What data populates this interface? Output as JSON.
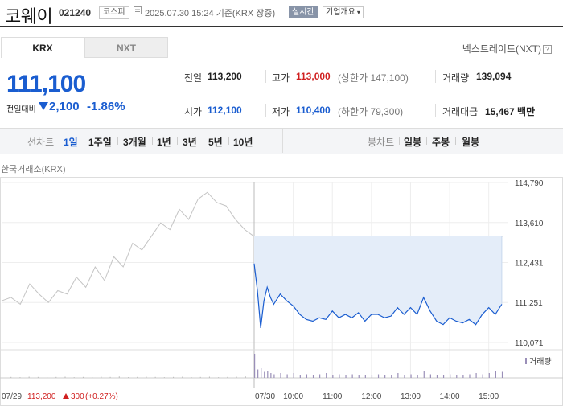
{
  "header": {
    "name": "코웨이",
    "code": "021240",
    "market": "코스피",
    "datetime": "2025.07.30 15:24 기준(KRX 장중)",
    "realtime": "실시간",
    "corp_info": "기업개요"
  },
  "tabs": {
    "krx": "KRX",
    "nxt": "NXT"
  },
  "nextrade_link": "넥스트레이드(NXT)",
  "price": {
    "current": "111,100",
    "prev_label": "전일대비",
    "change": "2,100",
    "percent": "-1.86%"
  },
  "stats": {
    "prev_close_label": "전일",
    "prev_close": "113,200",
    "high_label": "고가",
    "high": "113,000",
    "upper_limit": "(상한가 147,100)",
    "volume_label": "거래량",
    "volume": "139,094",
    "open_label": "시가",
    "open": "112,100",
    "low_label": "저가",
    "low": "110,400",
    "lower_limit": "(하한가 79,300)",
    "amount_label": "거래대금",
    "amount": "15,467",
    "amount_unit": "백만"
  },
  "periods": {
    "line_label": "선차트",
    "items": [
      "1일",
      "1주일",
      "3개월",
      "1년",
      "3년",
      "5년",
      "10년"
    ],
    "candle_label": "봉차트",
    "candle_items": [
      "일봉",
      "주봉",
      "월봉"
    ]
  },
  "exchange_label": "한국거래소(KRX)",
  "colors": {
    "accent": "#1a5dd0",
    "up": "#d02020",
    "area": "#e4edf9",
    "prev_line": "#c4c4c4"
  },
  "chart_data": {
    "type": "line",
    "y_ticks": [
      "114,790",
      "113,610",
      "112,431",
      "111,251",
      "110,071"
    ],
    "ylim": [
      110071,
      114790
    ],
    "x_ticks": [
      "10:00",
      "11:00",
      "12:00",
      "13:00",
      "14:00",
      "15:00"
    ],
    "prev_day_label": "07/29",
    "prev_day_close": "113,200",
    "prev_day_change": "300",
    "prev_day_pct": "(+0.27%)",
    "today_label": "07/30",
    "volume_legend": "거래량",
    "reference_price": 113200,
    "series": [
      {
        "time": [
          "09:00",
          "09:05",
          "09:10",
          "09:15",
          "09:20",
          "09:25",
          "09:30",
          "09:40",
          "09:50",
          "10:00",
          "10:10",
          "10:20",
          "10:30",
          "10:40",
          "10:50",
          "11:00",
          "11:10",
          "11:20",
          "11:30",
          "11:40",
          "11:50",
          "12:00",
          "12:10",
          "12:20",
          "12:30",
          "12:40",
          "12:50",
          "13:00",
          "13:10",
          "13:20",
          "13:30",
          "13:40",
          "13:50",
          "14:00",
          "14:10",
          "14:20",
          "14:30",
          "14:40",
          "14:50",
          "15:00",
          "15:10",
          "15:20"
        ],
        "values": [
          112400,
          111600,
          110500,
          111300,
          111700,
          111400,
          111200,
          111500,
          111300,
          111150,
          110900,
          110750,
          110700,
          110800,
          110750,
          111000,
          110800,
          110900,
          110800,
          110950,
          110700,
          110900,
          110900,
          110800,
          110850,
          111100,
          110900,
          111100,
          110900,
          111400,
          111000,
          110700,
          110600,
          110800,
          110700,
          110650,
          110750,
          110600,
          110900,
          111100,
          110900,
          111200
        ]
      }
    ],
    "prev_day_series": {
      "values": [
        111300,
        111400,
        111200,
        111800,
        111500,
        111250,
        111600,
        111500,
        112000,
        111700,
        112300,
        111900,
        112600,
        112300,
        113000,
        112800,
        113200,
        113600,
        113400,
        114000,
        113700,
        114300,
        114500,
        114200,
        114100,
        113700,
        113400,
        113200
      ]
    },
    "volume": {
      "prev_day": [
        0.05,
        0.04,
        0.03,
        0.05,
        0.04,
        0.03,
        0.04,
        0.05,
        0.03,
        0.04,
        0.03,
        0.05,
        0.04,
        0.06,
        0.03,
        0.04,
        0.05,
        0.04,
        0.03,
        0.04,
        0.05,
        0.03,
        0.04,
        0.05,
        0.03,
        0.04,
        0.05,
        0.06
      ],
      "today": [
        1.0,
        0.35,
        0.4,
        0.25,
        0.3,
        0.2,
        0.15,
        0.2,
        0.15,
        0.2,
        0.1,
        0.15,
        0.1,
        0.15,
        0.2,
        0.1,
        0.15,
        0.1,
        0.15,
        0.1,
        0.12,
        0.1,
        0.15,
        0.1,
        0.12,
        0.2,
        0.1,
        0.15,
        0.12,
        0.3,
        0.15,
        0.1,
        0.12,
        0.15,
        0.1,
        0.12,
        0.15,
        0.2,
        0.15,
        0.2,
        0.3,
        0.25
      ]
    }
  }
}
